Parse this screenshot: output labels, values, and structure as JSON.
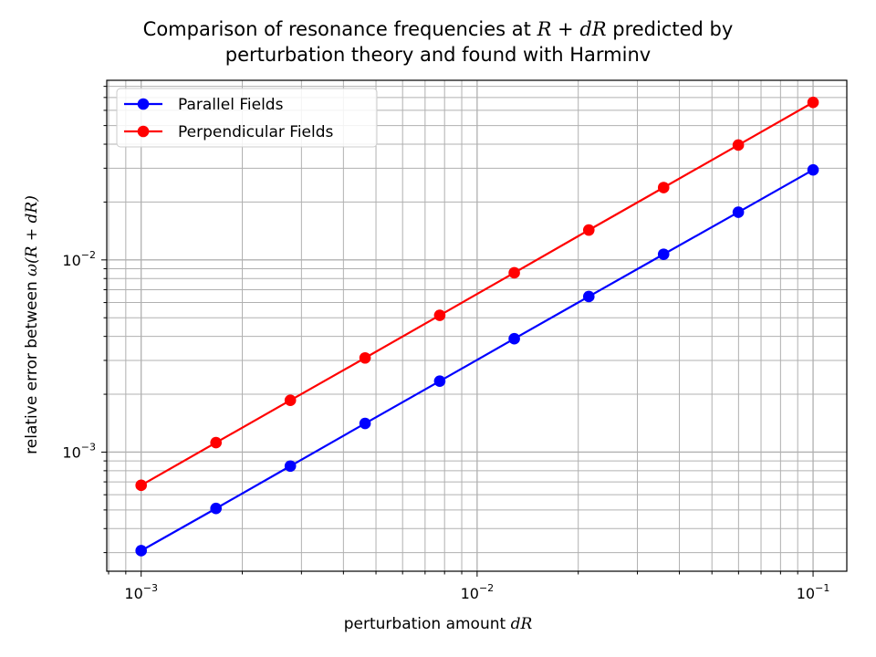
{
  "chart_data": {
    "type": "line",
    "title": "Comparison of resonance frequencies at R + dR predicted by perturbation theory and found with Harminv",
    "title_lines": [
      {
        "pre": "Comparison of resonance frequencies at ",
        "math": "R + dR",
        "post": " predicted by"
      },
      {
        "pre": "perturbation theory and found with Harminv",
        "math": "",
        "post": ""
      }
    ],
    "xlabel": {
      "pre": "perturbation amount ",
      "math": "dR"
    },
    "ylabel": {
      "pre": "relative error between ",
      "math": "ω(R + dR)"
    },
    "x_scale": "log",
    "y_scale": "log",
    "xlim": [
      0.00079,
      0.126
    ],
    "ylim": [
      0.00024,
      0.086
    ],
    "x_ticks": [
      {
        "value": 0.001,
        "base": "10",
        "exp": "−3"
      },
      {
        "value": 0.01,
        "base": "10",
        "exp": "−2"
      },
      {
        "value": 0.1,
        "base": "10",
        "exp": "−1"
      }
    ],
    "y_ticks": [
      {
        "value": 0.001,
        "base": "10",
        "exp": "−3"
      },
      {
        "value": 0.01,
        "base": "10",
        "exp": "−2"
      }
    ],
    "grid": true,
    "grid_minor": true,
    "legend_position": "upper-left",
    "x": [
      0.001,
      0.00167,
      0.00278,
      0.00464,
      0.00774,
      0.0129,
      0.0215,
      0.0359,
      0.0599,
      0.1
    ],
    "series": [
      {
        "name": "Parallel Fields",
        "color": "#0000ff",
        "values": [
          0.000307,
          0.000509,
          0.000846,
          0.00141,
          0.00234,
          0.00389,
          0.00645,
          0.0107,
          0.0177,
          0.0294
        ]
      },
      {
        "name": "Perpendicular Fields",
        "color": "#ff0000",
        "values": [
          0.000672,
          0.00112,
          0.00186,
          0.00309,
          0.00515,
          0.00857,
          0.0143,
          0.0238,
          0.0396,
          0.066
        ]
      }
    ]
  }
}
